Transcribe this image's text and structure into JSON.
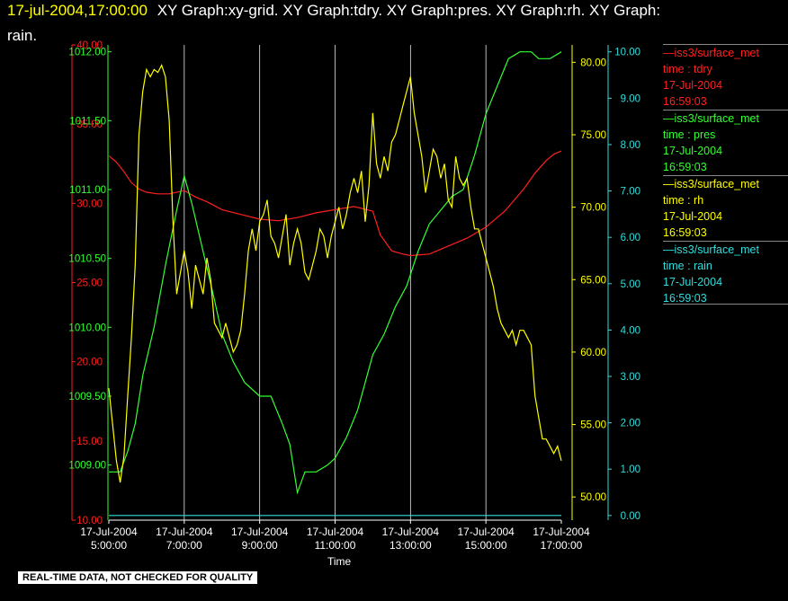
{
  "header": {
    "time_label": "17-jul-2004,17:00:00",
    "line1_rest": "XY Graph:xy-grid.  XY Graph:tdry.  XY Graph:pres.  XY Graph:rh.  XY Graph:",
    "line2": "rain."
  },
  "footer": {
    "notice": "REAL-TIME DATA, NOT CHECKED FOR QUALITY"
  },
  "chart_data": {
    "type": "line",
    "xlabel": "Time",
    "x_ticks": [
      {
        "date": "17-Jul-2004",
        "time": "5:00:00",
        "hour": 5
      },
      {
        "date": "17-Jul-2004",
        "time": "7:00:00",
        "hour": 7
      },
      {
        "date": "17-Jul-2004",
        "time": "9:00:00",
        "hour": 9
      },
      {
        "date": "17-Jul-2004",
        "time": "11:00:00",
        "hour": 11
      },
      {
        "date": "17-Jul-2004",
        "time": "13:00:00",
        "hour": 13
      },
      {
        "date": "17-Jul-2004",
        "time": "15:00:00",
        "hour": 15
      },
      {
        "date": "17-Jul-2004",
        "time": "17:00:00",
        "hour": 17
      }
    ],
    "xlim": [
      5,
      17
    ],
    "grid": "vertical",
    "axes": {
      "tdry": {
        "color": "#ff2020",
        "ylim": [
          10,
          40
        ],
        "ticks": [
          "10.00",
          "15.00",
          "20.00",
          "25.00",
          "30.00",
          "35.00",
          "40.00"
        ]
      },
      "pres": {
        "color": "#33ff33",
        "ylim": [
          1008.6,
          1012.05
        ],
        "ticks": [
          "1009.00",
          "1009.50",
          "1010.00",
          "1010.50",
          "1011.00",
          "1011.50",
          "1012.00"
        ]
      },
      "rh": {
        "color": "#ffff00",
        "ylim": [
          48.4,
          81.2
        ],
        "ticks": [
          "50.00",
          "55.00",
          "60.00",
          "65.00",
          "70.00",
          "75.00",
          "80.00"
        ]
      },
      "rain": {
        "color": "#33dddd",
        "ylim": [
          -0.1,
          10.15
        ],
        "ticks": [
          "0.00",
          "1.00",
          "2.00",
          "3.00",
          "4.00",
          "5.00",
          "6.00",
          "7.00",
          "8.00",
          "9.00",
          "10.00"
        ]
      }
    },
    "series": [
      {
        "key": "tdry",
        "color": "#ff2020",
        "x": [
          5.0,
          5.2,
          5.4,
          5.6,
          5.8,
          6.0,
          6.3,
          6.6,
          7.0,
          7.3,
          7.6,
          8.0,
          8.5,
          9.0,
          9.5,
          10.0,
          10.5,
          11.0,
          11.5,
          12.0,
          12.2,
          12.5,
          12.8,
          13.0,
          13.5,
          14.0,
          14.5,
          15.0,
          15.5,
          16.0,
          16.3,
          16.6,
          16.8,
          17.0
        ],
        "y": [
          33.0,
          32.6,
          32.0,
          31.3,
          30.9,
          30.7,
          30.6,
          30.6,
          30.8,
          30.4,
          30.1,
          29.6,
          29.3,
          29.0,
          28.9,
          29.1,
          29.4,
          29.6,
          29.8,
          29.5,
          28.0,
          27.0,
          26.8,
          26.7,
          26.8,
          27.3,
          27.8,
          28.5,
          29.5,
          30.9,
          31.9,
          32.7,
          33.1,
          33.3
        ]
      },
      {
        "key": "pres",
        "color": "#33ff33",
        "x": [
          5.0,
          5.3,
          5.5,
          5.7,
          5.9,
          6.2,
          6.5,
          6.8,
          7.0,
          7.2,
          7.5,
          7.8,
          8.0,
          8.3,
          8.6,
          9.0,
          9.3,
          9.6,
          9.8,
          10.0,
          10.2,
          10.5,
          10.8,
          11.0,
          11.3,
          11.6,
          11.8,
          12.0,
          12.3,
          12.6,
          12.9,
          13.2,
          13.5,
          13.8,
          14.1,
          14.4,
          14.7,
          15.0,
          15.3,
          15.6,
          15.9,
          16.2,
          16.4,
          16.7,
          17.0
        ],
        "y": [
          1008.95,
          1008.95,
          1009.1,
          1009.3,
          1009.65,
          1010.0,
          1010.45,
          1010.85,
          1011.1,
          1010.9,
          1010.55,
          1010.2,
          1009.95,
          1009.75,
          1009.6,
          1009.5,
          1009.5,
          1009.3,
          1009.15,
          1008.8,
          1008.95,
          1008.95,
          1009.0,
          1009.05,
          1009.2,
          1009.4,
          1009.6,
          1009.8,
          1009.95,
          1010.15,
          1010.3,
          1010.55,
          1010.75,
          1010.85,
          1010.95,
          1011.0,
          1011.25,
          1011.55,
          1011.75,
          1011.95,
          1012.0,
          1012.0,
          1011.95,
          1011.95,
          1012.0
        ]
      },
      {
        "key": "rh",
        "color": "#ffff00",
        "x": [
          5.0,
          5.1,
          5.2,
          5.3,
          5.4,
          5.5,
          5.6,
          5.7,
          5.8,
          5.9,
          6.0,
          6.1,
          6.2,
          6.3,
          6.4,
          6.5,
          6.6,
          6.7,
          6.8,
          6.9,
          7.0,
          7.1,
          7.2,
          7.3,
          7.4,
          7.5,
          7.6,
          7.7,
          7.8,
          7.9,
          8.0,
          8.1,
          8.2,
          8.3,
          8.4,
          8.5,
          8.6,
          8.7,
          8.8,
          8.9,
          9.0,
          9.1,
          9.2,
          9.3,
          9.4,
          9.5,
          9.6,
          9.7,
          9.8,
          9.9,
          10.0,
          10.1,
          10.2,
          10.3,
          10.4,
          10.5,
          10.6,
          10.7,
          10.8,
          10.9,
          11.0,
          11.1,
          11.2,
          11.3,
          11.4,
          11.5,
          11.6,
          11.7,
          11.8,
          11.9,
          12.0,
          12.1,
          12.2,
          12.3,
          12.4,
          12.5,
          12.6,
          12.7,
          12.8,
          12.9,
          13.0,
          13.1,
          13.2,
          13.3,
          13.4,
          13.5,
          13.6,
          13.7,
          13.8,
          13.9,
          14.0,
          14.1,
          14.2,
          14.3,
          14.4,
          14.5,
          14.6,
          14.7,
          14.8,
          14.9,
          15.0,
          15.1,
          15.2,
          15.3,
          15.4,
          15.5,
          15.6,
          15.7,
          15.8,
          15.9,
          16.0,
          16.1,
          16.2,
          16.3,
          16.4,
          16.5,
          16.6,
          16.7,
          16.8,
          16.9,
          17.0
        ],
        "y": [
          57.5,
          55.0,
          52.5,
          51.0,
          52.8,
          57.0,
          61.0,
          66.0,
          75.0,
          78.0,
          79.5,
          79.0,
          79.5,
          79.3,
          79.8,
          79.0,
          76.0,
          69.0,
          64.0,
          65.5,
          67.0,
          65.5,
          63.0,
          66.0,
          65.0,
          64.0,
          66.5,
          65.0,
          62.0,
          61.5,
          61.0,
          62.0,
          61.0,
          60.0,
          60.5,
          61.5,
          64.0,
          67.0,
          68.5,
          67.0,
          69.0,
          69.5,
          70.5,
          68.0,
          67.5,
          66.5,
          68.0,
          69.5,
          66.0,
          67.5,
          68.5,
          67.5,
          65.5,
          65.0,
          66.0,
          67.0,
          68.5,
          68.0,
          66.5,
          68.0,
          69.0,
          70.0,
          68.5,
          69.5,
          71.0,
          72.0,
          71.0,
          72.5,
          69.0,
          71.5,
          76.5,
          73.0,
          72.0,
          73.5,
          72.5,
          74.5,
          75.0,
          76.0,
          77.0,
          78.0,
          79.0,
          76.5,
          75.0,
          73.5,
          71.0,
          72.5,
          74.0,
          73.5,
          72.0,
          73.0,
          70.5,
          70.0,
          73.5,
          72.0,
          71.5,
          72.0,
          70.0,
          68.5,
          68.5,
          67.5,
          66.5,
          65.5,
          64.5,
          63.0,
          62.0,
          61.5,
          61.0,
          61.5,
          60.5,
          61.5,
          61.5,
          61.0,
          60.5,
          57.0,
          55.5,
          54.0,
          54.0,
          53.5,
          53.0,
          53.5,
          52.5
        ]
      },
      {
        "key": "rain",
        "color": "#33dddd",
        "x": [
          5.0,
          17.0
        ],
        "y": [
          0.0,
          0.0
        ]
      }
    ]
  },
  "legend": [
    {
      "line1": "iss3/surface_met",
      "line2": "time : tdry",
      "line3": "17-Jul-2004",
      "line4": "16:59:03",
      "color": "#ff2020"
    },
    {
      "line1": "iss3/surface_met",
      "line2": "time : pres",
      "line3": "17-Jul-2004",
      "line4": "16:59:03",
      "color": "#33ff33"
    },
    {
      "line1": "iss3/surface_met",
      "line2": "time : rh",
      "line3": "17-Jul-2004",
      "line4": "16:59:03",
      "color": "#ffff00"
    },
    {
      "line1": "iss3/surface_met",
      "line2": "time : rain",
      "line3": "17-Jul-2004",
      "line4": "16:59:03",
      "color": "#33dddd"
    }
  ]
}
